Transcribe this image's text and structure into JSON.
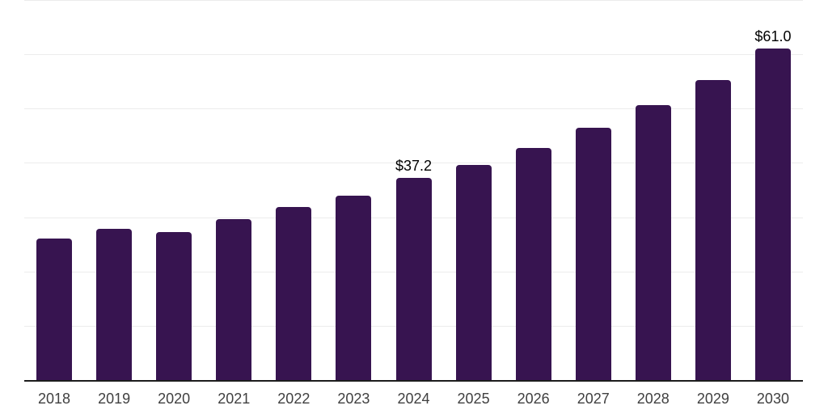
{
  "page": {
    "background": "#ffffff"
  },
  "chart_data": {
    "type": "bar",
    "categories": [
      "2018",
      "2019",
      "2020",
      "2021",
      "2022",
      "2023",
      "2024",
      "2025",
      "2026",
      "2027",
      "2028",
      "2029",
      "2030"
    ],
    "values": [
      26.0,
      27.9,
      27.2,
      29.6,
      31.9,
      34.0,
      37.2,
      39.6,
      42.8,
      46.4,
      50.7,
      55.2,
      61.0
    ],
    "data_labels": [
      {
        "category": "2024",
        "text": "$37.2"
      },
      {
        "category": "2030",
        "text": "$61.0"
      }
    ],
    "ylim": [
      0,
      70
    ],
    "grid_step": 10,
    "grid": "horizontal-only",
    "legend": "none",
    "y_axis_labels": "none",
    "colors": {
      "bar": "#371450",
      "gridline": "#ececec",
      "axis_line": "#1c1c1c",
      "tick_label": "#404040",
      "data_label": "#000000"
    }
  }
}
